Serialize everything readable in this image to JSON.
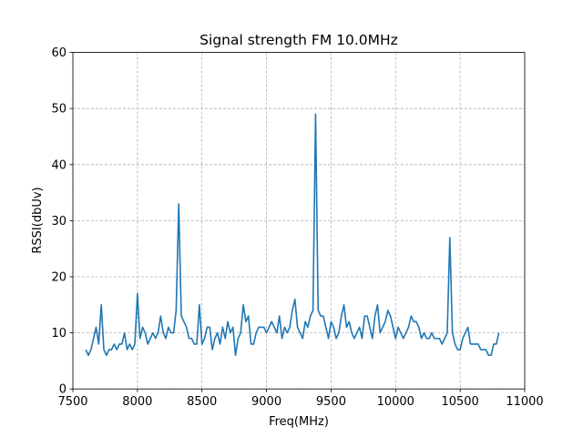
{
  "chart_data": {
    "type": "line",
    "title": "Signal strength FM 10.0MHz",
    "x_label": "Freq(MHz)",
    "y_label": "RSSI(dbUv)",
    "x": [
      7600,
      7620,
      7640,
      7660,
      7680,
      7700,
      7720,
      7740,
      7760,
      7780,
      7800,
      7820,
      7840,
      7860,
      7880,
      7900,
      7920,
      7940,
      7960,
      7980,
      8000,
      8020,
      8040,
      8060,
      8080,
      8100,
      8120,
      8140,
      8160,
      8180,
      8200,
      8220,
      8240,
      8260,
      8280,
      8300,
      8320,
      8340,
      8360,
      8380,
      8400,
      8420,
      8440,
      8460,
      8480,
      8500,
      8520,
      8540,
      8560,
      8580,
      8600,
      8620,
      8640,
      8660,
      8680,
      8700,
      8720,
      8740,
      8760,
      8780,
      8800,
      8820,
      8840,
      8860,
      8880,
      8900,
      8920,
      8940,
      8960,
      8980,
      9000,
      9020,
      9040,
      9060,
      9080,
      9100,
      9120,
      9140,
      9160,
      9180,
      9200,
      9220,
      9240,
      9260,
      9280,
      9300,
      9320,
      9340,
      9360,
      9380,
      9400,
      9420,
      9440,
      9460,
      9480,
      9500,
      9520,
      9540,
      9560,
      9580,
      9600,
      9620,
      9640,
      9660,
      9680,
      9700,
      9720,
      9740,
      9760,
      9780,
      9800,
      9820,
      9840,
      9860,
      9880,
      9900,
      9920,
      9940,
      9960,
      9980,
      10000,
      10020,
      10040,
      10060,
      10080,
      10100,
      10120,
      10140,
      10160,
      10180,
      10200,
      10220,
      10240,
      10260,
      10280,
      10300,
      10320,
      10340,
      10360,
      10380,
      10400,
      10420,
      10440,
      10460,
      10480,
      10500,
      10520,
      10540,
      10560,
      10580,
      10600,
      10620,
      10640,
      10660,
      10680,
      10700,
      10720,
      10740,
      10760,
      10780,
      10800
    ],
    "series": [
      {
        "name": "RSSI",
        "color": "#1f77b4",
        "values": [
          7,
          6,
          7,
          9,
          11,
          8,
          15,
          7,
          6,
          7,
          7,
          8,
          7,
          8,
          8,
          10,
          7,
          8,
          7,
          8,
          17,
          9,
          11,
          10,
          8,
          9,
          10,
          9,
          10,
          13,
          10,
          9,
          11,
          10,
          10,
          14,
          33,
          13,
          12,
          11,
          9,
          9,
          8,
          8,
          15,
          8,
          9,
          11,
          11,
          7,
          9,
          10,
          8,
          11,
          9,
          12,
          10,
          11,
          6,
          9,
          10,
          15,
          12,
          13,
          8,
          8,
          10,
          11,
          11,
          11,
          10,
          11,
          12,
          11,
          10,
          13,
          9,
          11,
          10,
          11,
          14,
          16,
          11,
          10,
          9,
          12,
          11,
          13,
          14,
          49,
          14,
          13,
          13,
          11,
          9,
          12,
          11,
          9,
          10,
          13,
          15,
          11,
          12,
          10,
          9,
          10,
          11,
          9,
          13,
          13,
          11,
          9,
          13,
          15,
          10,
          11,
          12,
          14,
          13,
          11,
          9,
          11,
          10,
          9,
          10,
          11,
          13,
          12,
          12,
          11,
          9,
          10,
          9,
          9,
          10,
          9,
          9,
          9,
          8,
          9,
          10,
          27,
          10,
          8,
          7,
          7,
          9,
          10,
          11,
          8,
          8,
          8,
          8,
          7,
          7,
          7,
          6,
          6,
          8,
          8,
          10
        ]
      }
    ],
    "xlim": [
      7500,
      11000
    ],
    "xticks": [
      7500,
      8000,
      8500,
      9000,
      9500,
      10000,
      10500,
      11000
    ],
    "ylim": [
      0,
      60
    ],
    "yticks": [
      0,
      10,
      20,
      30,
      40,
      50,
      60
    ],
    "grid": true
  }
}
